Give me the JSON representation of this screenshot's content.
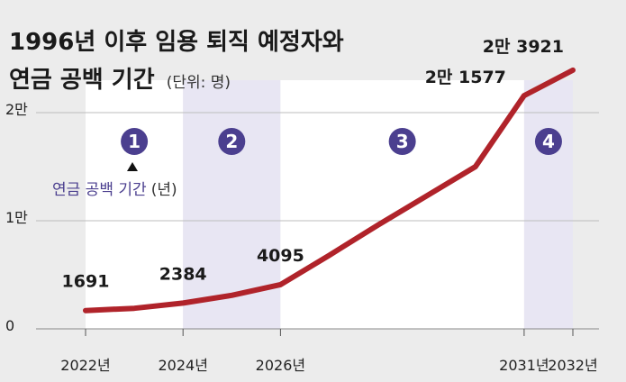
{
  "chart_data": {
    "type": "line",
    "title_line1": "1996년 이후 임용 퇴직 예정자와",
    "title_line2": "연금 공백 기간",
    "unit": "(단위: 명)",
    "xlabel": "",
    "ylabel": "",
    "x": [
      2022,
      2023,
      2024,
      2025,
      2026,
      2027,
      2028,
      2029,
      2030,
      2031,
      2032
    ],
    "series": [
      {
        "values": [
          1691,
          1900,
          2384,
          3100,
          4095,
          6800,
          9600,
          12300,
          15000,
          21577,
          23921
        ],
        "color": "#b0232a"
      }
    ],
    "value_labels": [
      {
        "x": 2022,
        "y": 1691,
        "text": "1691"
      },
      {
        "x": 2024,
        "y": 2384,
        "text": "2384"
      },
      {
        "x": 2026,
        "y": 4095,
        "text": "4095"
      },
      {
        "x": 2031,
        "y": 21577,
        "text": "2만 1577"
      },
      {
        "x": 2032,
        "y": 23921,
        "text": "2만 3921"
      }
    ],
    "x_tick_labels": [
      {
        "x": 2022,
        "text": "2022년"
      },
      {
        "x": 2024,
        "text": "2024년"
      },
      {
        "x": 2026,
        "text": "2026년"
      },
      {
        "x": 2031,
        "text": "2031년"
      },
      {
        "x": 2032,
        "text": "2032년"
      }
    ],
    "y_ticks": [
      {
        "value": 0,
        "text": "0"
      },
      {
        "value": 10000,
        "text": "1만"
      },
      {
        "value": 20000,
        "text": "2만"
      }
    ],
    "ylim": [
      0,
      23000
    ],
    "xlim": [
      2022,
      2032
    ],
    "periods": [
      {
        "label": "1",
        "start": 2022,
        "end": 2024,
        "shaded": false
      },
      {
        "label": "2",
        "start": 2024,
        "end": 2026,
        "shaded": true
      },
      {
        "label": "3",
        "start": 2026,
        "end": 2031,
        "shaded": false
      },
      {
        "label": "4",
        "start": 2031,
        "end": 2032,
        "shaded": true
      }
    ],
    "annotation": {
      "text": "연금 공백 기간",
      "unit": "(년)"
    },
    "grid": true,
    "colors": {
      "line": "#b0232a",
      "shade_light": "#ffffff",
      "shade_purple": "#e8e6f3",
      "badge": "#4b3f8f",
      "grid": "#bdbdbd",
      "background": "#ececec"
    }
  }
}
